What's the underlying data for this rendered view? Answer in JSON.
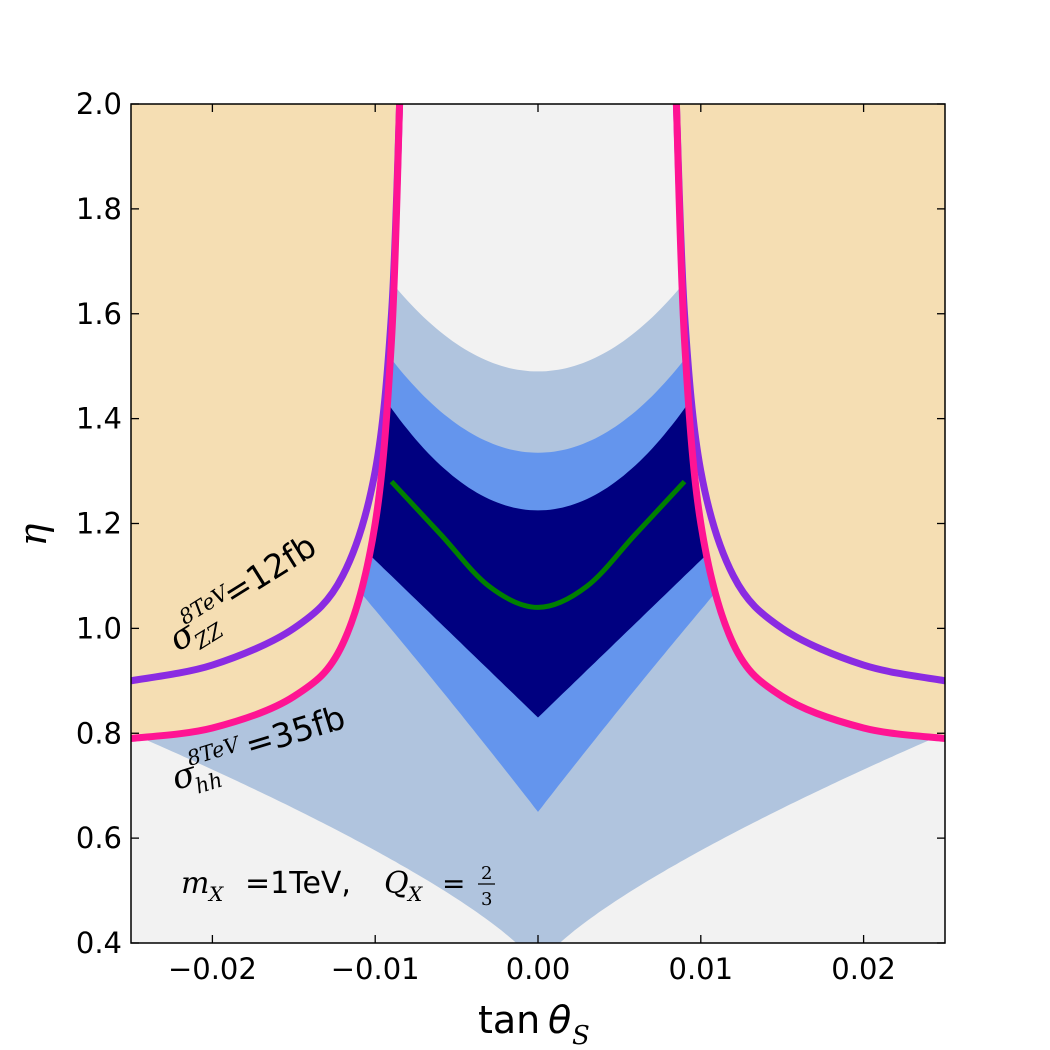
{
  "chart_data": {
    "type": "area",
    "title": "",
    "xlabel": {
      "main": "tan",
      "symbol": "θ",
      "sub": "S"
    },
    "ylabel": "η",
    "xlim": [
      -0.025,
      0.025
    ],
    "ylim": [
      0.4,
      2.0
    ],
    "xticks": [
      -0.02,
      -0.01,
      0.0,
      0.01,
      0.02
    ],
    "xtick_labels": [
      "−0.02",
      "−0.01",
      "0.00",
      "0.01",
      "0.02"
    ],
    "yticks": [
      0.4,
      0.6,
      0.8,
      1.0,
      1.2,
      1.4,
      1.6,
      1.8,
      2.0
    ],
    "ytick_labels": [
      "0.4",
      "0.6",
      "0.8",
      "1.0",
      "1.2",
      "1.4",
      "1.6",
      "1.8",
      "2.0"
    ],
    "grid": false,
    "colors": {
      "background": "#f2f2f2",
      "excluded": "#f5deb3",
      "band_outer": "#b0c4de",
      "band_middle": "#6495ed",
      "band_inner": "#000080",
      "central_curve": "#008000",
      "zz_curve": "#8a2be2",
      "hh_curve": "#ff1493"
    },
    "bands": [
      {
        "name": "outer",
        "center_lower": 0.35,
        "center_upper": 1.49,
        "edge_at_x_0.025": 0.8
      },
      {
        "name": "middle",
        "center_lower": 0.65,
        "center_upper": 1.335
      },
      {
        "name": "inner",
        "center_lower": 0.83,
        "center_upper": 1.225
      }
    ],
    "central_curve": {
      "x": [
        -0.009,
        -0.006,
        -0.003,
        0.0,
        0.003,
        0.006,
        0.009
      ],
      "y": [
        1.28,
        1.18,
        1.08,
        1.04,
        1.08,
        1.18,
        1.28
      ]
    },
    "zz_curve": {
      "x": [
        -0.025,
        -0.02,
        -0.015,
        -0.012,
        -0.01,
        -0.009,
        -0.0085
      ],
      "y": [
        0.9,
        0.93,
        1.0,
        1.1,
        1.3,
        1.6,
        2.0
      ]
    },
    "hh_curve": {
      "x": [
        -0.025,
        -0.02,
        -0.015,
        -0.012,
        -0.01,
        -0.009,
        -0.0085
      ],
      "y": [
        0.79,
        0.81,
        0.87,
        0.97,
        1.2,
        1.55,
        2.0
      ]
    },
    "annotations": {
      "zz": {
        "sigma": "σ",
        "sup": "8TeV",
        "sub": "ZZ",
        "value": "=12fb"
      },
      "hh": {
        "sigma": "σ",
        "sup": "8TeV",
        "sub": "hh",
        "value": "=35fb"
      },
      "params": {
        "m": "m",
        "m_sub": "X",
        "m_val": "=1TeV,",
        "q": "Q",
        "q_sub": "X",
        "q_eq": "=",
        "q_num": "2",
        "q_den": "3"
      }
    }
  }
}
